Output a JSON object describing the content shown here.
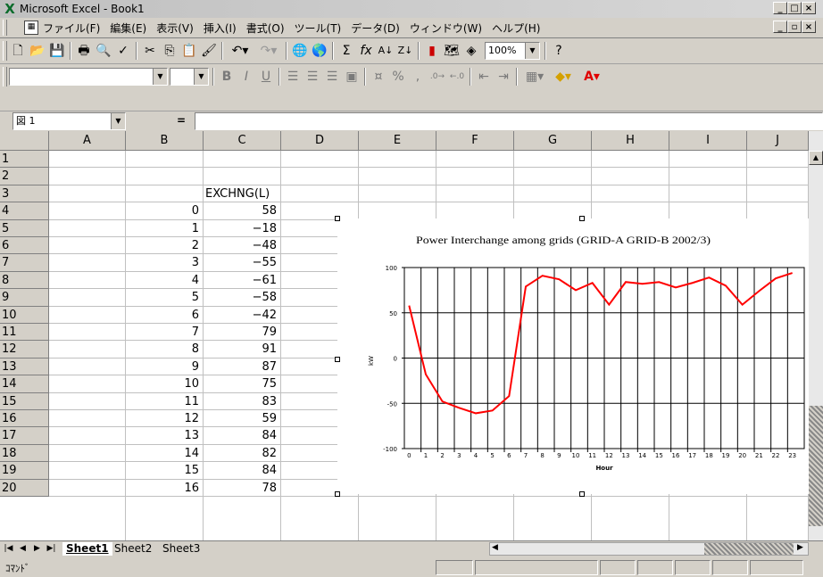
{
  "window": {
    "title": "Microsoft Excel - Book1"
  },
  "menu": [
    "ファイル(F)",
    "編集(E)",
    "表示(V)",
    "挿入(I)",
    "書式(O)",
    "ツール(T)",
    "データ(D)",
    "ウィンドウ(W)",
    "ヘルプ(H)"
  ],
  "toolbar": {
    "zoom": "100%"
  },
  "formula": {
    "name_box": "図 1",
    "equals": "="
  },
  "columns": [
    "A",
    "B",
    "C",
    "D",
    "E",
    "F",
    "G",
    "H",
    "I",
    "J"
  ],
  "rows": [
    "1",
    "2",
    "3",
    "4",
    "5",
    "6",
    "7",
    "8",
    "9",
    "10",
    "11",
    "12",
    "13",
    "14",
    "15",
    "16",
    "17",
    "18",
    "19",
    "20"
  ],
  "sheet": {
    "c3": "EXCHNG(L)",
    "b_values": [
      "0",
      "1",
      "2",
      "3",
      "4",
      "5",
      "6",
      "7",
      "8",
      "9",
      "10",
      "11",
      "12",
      "13",
      "14",
      "15",
      "16"
    ],
    "c_values": [
      "58",
      "−18",
      "−48",
      "−55",
      "−61",
      "−58",
      "−42",
      "79",
      "91",
      "87",
      "75",
      "83",
      "59",
      "84",
      "82",
      "84",
      "78"
    ]
  },
  "chart_data": {
    "type": "line",
    "title": "Power Interchange among grids (GRID-A GRID-B 2002/3)",
    "xlabel": "Hour",
    "ylabel": "kW",
    "categories": [
      "0",
      "1",
      "2",
      "3",
      "4",
      "5",
      "6",
      "7",
      "8",
      "9",
      "10",
      "11",
      "12",
      "13",
      "14",
      "15",
      "16",
      "17",
      "18",
      "19",
      "20",
      "21",
      "22",
      "23"
    ],
    "series": [
      {
        "values": [
          58,
          -18,
          -48,
          -55,
          -61,
          -58,
          -42,
          79,
          91,
          87,
          75,
          83,
          59,
          84,
          82,
          84,
          78,
          83,
          89,
          80,
          59,
          74,
          88,
          94
        ]
      }
    ],
    "ylim": [
      -100,
      100
    ],
    "yticks": [
      "100",
      "50",
      "0",
      "-50",
      "-100"
    ],
    "grid": true,
    "legend": "none",
    "line_color": "#ff0000"
  },
  "tabs": {
    "sheets": [
      "Sheet1",
      "Sheet2",
      "Sheet3"
    ],
    "active": "Sheet1"
  },
  "status": {
    "mode": "ｺﾏﾝﾄﾞ"
  }
}
